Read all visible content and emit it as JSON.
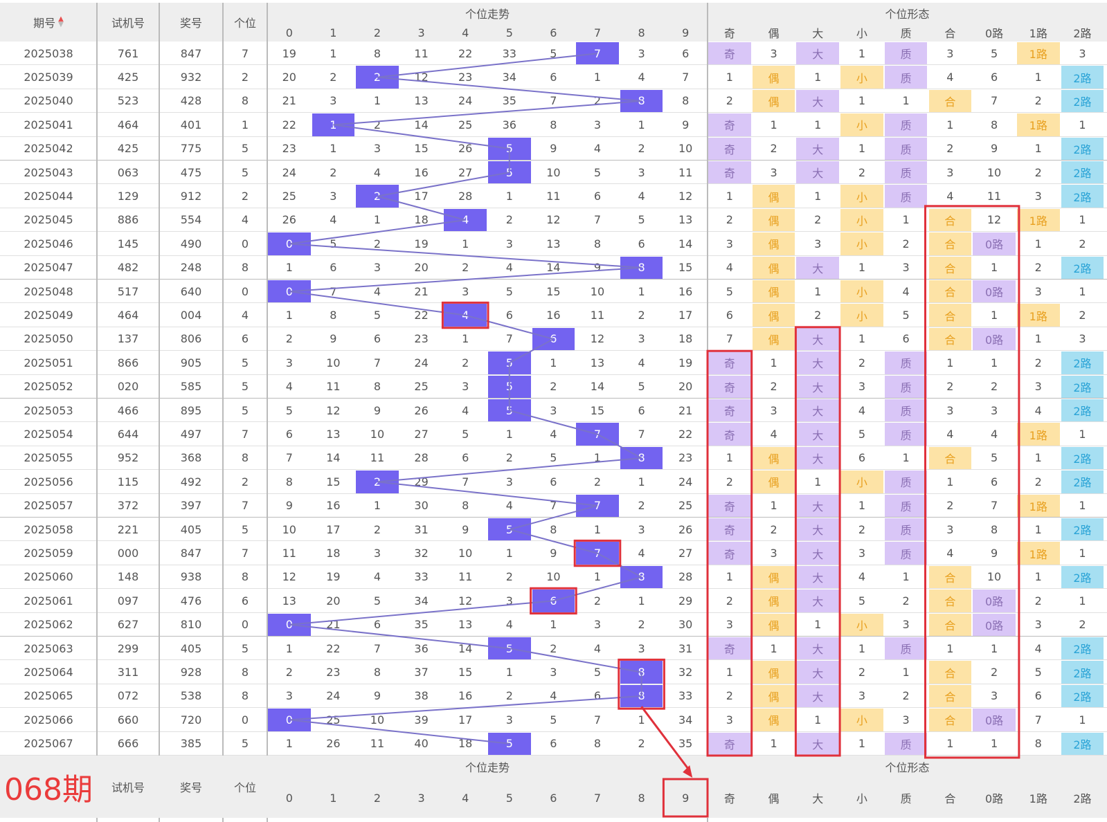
{
  "header": {
    "col_qihao": "期号",
    "sort_icon": "sort-arrow-icon",
    "col_shiji": "试机号",
    "col_jianghao": "奖号",
    "col_gewei": "个位",
    "group_trend": "个位走势",
    "group_form": "个位形态",
    "digits": [
      "0",
      "1",
      "2",
      "3",
      "4",
      "5",
      "6",
      "7",
      "8",
      "9"
    ],
    "form_cols": [
      "奇",
      "偶",
      "大",
      "小",
      "质",
      "合",
      "0路",
      "1路",
      "2路"
    ]
  },
  "footer": {
    "next_issue": "068期",
    "col_shiji": "试机号",
    "col_jianghao": "奖号",
    "col_gewei": "个位",
    "group_trend": "个位走势",
    "group_form": "个位形态",
    "digits": [
      "0",
      "1",
      "2",
      "3",
      "4",
      "5",
      "6",
      "7",
      "8",
      "9"
    ],
    "form_cols": [
      "奇",
      "偶",
      "大",
      "小",
      "质",
      "合",
      "0路",
      "1路",
      "2路"
    ],
    "predicted_digit": "9"
  },
  "colors": {
    "ball": "#7363f0",
    "purple_tag": "#d9c6f7",
    "orange_tag": "#fde3a6",
    "blue_tag": "#a6dff2",
    "highlight_box": "#e0313b",
    "trend_line": "#7a72c9"
  },
  "chart_data": {
    "type": "table",
    "rows": [
      {
        "issue": "2025038",
        "test": "761",
        "draw": "847",
        "unit": 7,
        "miss": [
          "19",
          "1",
          "8",
          "11",
          "22",
          "33",
          "5",
          "7",
          "3",
          "6"
        ],
        "form": [
          "奇",
          "3",
          "大",
          "1",
          "质",
          "3",
          "5",
          "1路",
          "3"
        ]
      },
      {
        "issue": "2025039",
        "test": "425",
        "draw": "932",
        "unit": 2,
        "miss": [
          "20",
          "2",
          "2",
          "12",
          "23",
          "34",
          "6",
          "1",
          "4",
          "7"
        ],
        "form": [
          "1",
          "偶",
          "1",
          "小",
          "质",
          "4",
          "6",
          "1",
          "2路"
        ]
      },
      {
        "issue": "2025040",
        "test": "523",
        "draw": "428",
        "unit": 8,
        "miss": [
          "21",
          "3",
          "1",
          "13",
          "24",
          "35",
          "7",
          "2",
          "8",
          "8"
        ],
        "form": [
          "2",
          "偶",
          "大",
          "1",
          "1",
          "合",
          "7",
          "2",
          "2路"
        ]
      },
      {
        "issue": "2025041",
        "test": "464",
        "draw": "401",
        "unit": 1,
        "miss": [
          "22",
          "1",
          "2",
          "14",
          "25",
          "36",
          "8",
          "3",
          "1",
          "9"
        ],
        "form": [
          "奇",
          "1",
          "1",
          "小",
          "质",
          "1",
          "8",
          "1路",
          "1"
        ]
      },
      {
        "issue": "2025042",
        "test": "425",
        "draw": "775",
        "unit": 5,
        "miss": [
          "23",
          "1",
          "3",
          "15",
          "26",
          "5",
          "9",
          "4",
          "2",
          "10"
        ],
        "form": [
          "奇",
          "2",
          "大",
          "1",
          "质",
          "2",
          "9",
          "1",
          "2路"
        ]
      },
      {
        "issue": "2025043",
        "test": "063",
        "draw": "475",
        "unit": 5,
        "miss": [
          "24",
          "2",
          "4",
          "16",
          "27",
          "5",
          "10",
          "5",
          "3",
          "11"
        ],
        "form": [
          "奇",
          "3",
          "大",
          "2",
          "质",
          "3",
          "10",
          "2",
          "2路"
        ]
      },
      {
        "issue": "2025044",
        "test": "129",
        "draw": "912",
        "unit": 2,
        "miss": [
          "25",
          "3",
          "2",
          "17",
          "28",
          "1",
          "11",
          "6",
          "4",
          "12"
        ],
        "form": [
          "1",
          "偶",
          "1",
          "小",
          "质",
          "4",
          "11",
          "3",
          "2路"
        ]
      },
      {
        "issue": "2025045",
        "test": "886",
        "draw": "554",
        "unit": 4,
        "miss": [
          "26",
          "4",
          "1",
          "18",
          "4",
          "2",
          "12",
          "7",
          "5",
          "13"
        ],
        "form": [
          "2",
          "偶",
          "2",
          "小",
          "1",
          "合",
          "12",
          "1路",
          "1"
        ]
      },
      {
        "issue": "2025046",
        "test": "145",
        "draw": "490",
        "unit": 0,
        "miss": [
          "0",
          "5",
          "2",
          "19",
          "1",
          "3",
          "13",
          "8",
          "6",
          "14"
        ],
        "form": [
          "3",
          "偶",
          "3",
          "小",
          "2",
          "合",
          "0路",
          "1",
          "2"
        ]
      },
      {
        "issue": "2025047",
        "test": "482",
        "draw": "248",
        "unit": 8,
        "miss": [
          "1",
          "6",
          "3",
          "20",
          "2",
          "4",
          "14",
          "9",
          "8",
          "15"
        ],
        "form": [
          "4",
          "偶",
          "大",
          "1",
          "3",
          "合",
          "1",
          "2",
          "2路"
        ]
      },
      {
        "issue": "2025048",
        "test": "517",
        "draw": "640",
        "unit": 0,
        "miss": [
          "0",
          "7",
          "4",
          "21",
          "3",
          "5",
          "15",
          "10",
          "1",
          "16"
        ],
        "form": [
          "5",
          "偶",
          "1",
          "小",
          "4",
          "合",
          "0路",
          "3",
          "1"
        ]
      },
      {
        "issue": "2025049",
        "test": "464",
        "draw": "004",
        "unit": 4,
        "miss": [
          "1",
          "8",
          "5",
          "22",
          "4",
          "6",
          "16",
          "11",
          "2",
          "17"
        ],
        "form": [
          "6",
          "偶",
          "2",
          "小",
          "5",
          "合",
          "1",
          "1路",
          "2"
        ]
      },
      {
        "issue": "2025050",
        "test": "137",
        "draw": "806",
        "unit": 6,
        "miss": [
          "2",
          "9",
          "6",
          "23",
          "1",
          "7",
          "6",
          "12",
          "3",
          "18"
        ],
        "form": [
          "7",
          "偶",
          "大",
          "1",
          "6",
          "合",
          "0路",
          "1",
          "3"
        ]
      },
      {
        "issue": "2025051",
        "test": "866",
        "draw": "905",
        "unit": 5,
        "miss": [
          "3",
          "10",
          "7",
          "24",
          "2",
          "5",
          "1",
          "13",
          "4",
          "19"
        ],
        "form": [
          "奇",
          "1",
          "大",
          "2",
          "质",
          "1",
          "1",
          "2",
          "2路"
        ]
      },
      {
        "issue": "2025052",
        "test": "020",
        "draw": "585",
        "unit": 5,
        "miss": [
          "4",
          "11",
          "8",
          "25",
          "3",
          "5",
          "2",
          "14",
          "5",
          "20"
        ],
        "form": [
          "奇",
          "2",
          "大",
          "3",
          "质",
          "2",
          "2",
          "3",
          "2路"
        ]
      },
      {
        "issue": "2025053",
        "test": "466",
        "draw": "895",
        "unit": 5,
        "miss": [
          "5",
          "12",
          "9",
          "26",
          "4",
          "5",
          "3",
          "15",
          "6",
          "21"
        ],
        "form": [
          "奇",
          "3",
          "大",
          "4",
          "质",
          "3",
          "3",
          "4",
          "2路"
        ]
      },
      {
        "issue": "2025054",
        "test": "644",
        "draw": "497",
        "unit": 7,
        "miss": [
          "6",
          "13",
          "10",
          "27",
          "5",
          "1",
          "4",
          "7",
          "7",
          "22"
        ],
        "form": [
          "奇",
          "4",
          "大",
          "5",
          "质",
          "4",
          "4",
          "1路",
          "1"
        ]
      },
      {
        "issue": "2025055",
        "test": "952",
        "draw": "368",
        "unit": 8,
        "miss": [
          "7",
          "14",
          "11",
          "28",
          "6",
          "2",
          "5",
          "1",
          "8",
          "23"
        ],
        "form": [
          "1",
          "偶",
          "大",
          "6",
          "1",
          "合",
          "5",
          "1",
          "2路"
        ]
      },
      {
        "issue": "2025056",
        "test": "115",
        "draw": "492",
        "unit": 2,
        "miss": [
          "8",
          "15",
          "2",
          "29",
          "7",
          "3",
          "6",
          "2",
          "1",
          "24"
        ],
        "form": [
          "2",
          "偶",
          "1",
          "小",
          "质",
          "1",
          "6",
          "2",
          "2路"
        ]
      },
      {
        "issue": "2025057",
        "test": "372",
        "draw": "397",
        "unit": 7,
        "miss": [
          "9",
          "16",
          "1",
          "30",
          "8",
          "4",
          "7",
          "7",
          "2",
          "25"
        ],
        "form": [
          "奇",
          "1",
          "大",
          "1",
          "质",
          "2",
          "7",
          "1路",
          "1"
        ]
      },
      {
        "issue": "2025058",
        "test": "221",
        "draw": "405",
        "unit": 5,
        "miss": [
          "10",
          "17",
          "2",
          "31",
          "9",
          "5",
          "8",
          "1",
          "3",
          "26"
        ],
        "form": [
          "奇",
          "2",
          "大",
          "2",
          "质",
          "3",
          "8",
          "1",
          "2路"
        ]
      },
      {
        "issue": "2025059",
        "test": "000",
        "draw": "847",
        "unit": 7,
        "miss": [
          "11",
          "18",
          "3",
          "32",
          "10",
          "1",
          "9",
          "7",
          "4",
          "27"
        ],
        "form": [
          "奇",
          "3",
          "大",
          "3",
          "质",
          "4",
          "9",
          "1路",
          "1"
        ]
      },
      {
        "issue": "2025060",
        "test": "148",
        "draw": "938",
        "unit": 8,
        "miss": [
          "12",
          "19",
          "4",
          "33",
          "11",
          "2",
          "10",
          "1",
          "8",
          "28"
        ],
        "form": [
          "1",
          "偶",
          "大",
          "4",
          "1",
          "合",
          "10",
          "1",
          "2路"
        ]
      },
      {
        "issue": "2025061",
        "test": "097",
        "draw": "476",
        "unit": 6,
        "miss": [
          "13",
          "20",
          "5",
          "34",
          "12",
          "3",
          "6",
          "2",
          "1",
          "29"
        ],
        "form": [
          "2",
          "偶",
          "大",
          "5",
          "2",
          "合",
          "0路",
          "2",
          "1"
        ]
      },
      {
        "issue": "2025062",
        "test": "627",
        "draw": "810",
        "unit": 0,
        "miss": [
          "0",
          "21",
          "6",
          "35",
          "13",
          "4",
          "1",
          "3",
          "2",
          "30"
        ],
        "form": [
          "3",
          "偶",
          "1",
          "小",
          "3",
          "合",
          "0路",
          "3",
          "2"
        ]
      },
      {
        "issue": "2025063",
        "test": "299",
        "draw": "405",
        "unit": 5,
        "miss": [
          "1",
          "22",
          "7",
          "36",
          "14",
          "5",
          "2",
          "4",
          "3",
          "31"
        ],
        "form": [
          "奇",
          "1",
          "大",
          "1",
          "质",
          "1",
          "1",
          "4",
          "2路"
        ]
      },
      {
        "issue": "2025064",
        "test": "311",
        "draw": "928",
        "unit": 8,
        "miss": [
          "2",
          "23",
          "8",
          "37",
          "15",
          "1",
          "3",
          "5",
          "8",
          "32"
        ],
        "form": [
          "1",
          "偶",
          "大",
          "2",
          "1",
          "合",
          "2",
          "5",
          "2路"
        ]
      },
      {
        "issue": "2025065",
        "test": "072",
        "draw": "538",
        "unit": 8,
        "miss": [
          "3",
          "24",
          "9",
          "38",
          "16",
          "2",
          "4",
          "6",
          "8",
          "33"
        ],
        "form": [
          "2",
          "偶",
          "大",
          "3",
          "2",
          "合",
          "3",
          "6",
          "2路"
        ]
      },
      {
        "issue": "2025066",
        "test": "660",
        "draw": "720",
        "unit": 0,
        "miss": [
          "0",
          "25",
          "10",
          "39",
          "17",
          "3",
          "5",
          "7",
          "1",
          "34"
        ],
        "form": [
          "3",
          "偶",
          "1",
          "小",
          "3",
          "合",
          "0路",
          "7",
          "1"
        ]
      },
      {
        "issue": "2025067",
        "test": "666",
        "draw": "385",
        "unit": 5,
        "miss": [
          "1",
          "26",
          "11",
          "40",
          "18",
          "5",
          "6",
          "8",
          "2",
          "35"
        ],
        "form": [
          "奇",
          "1",
          "大",
          "1",
          "质",
          "1",
          "1",
          "8",
          "2路"
        ]
      }
    ]
  }
}
